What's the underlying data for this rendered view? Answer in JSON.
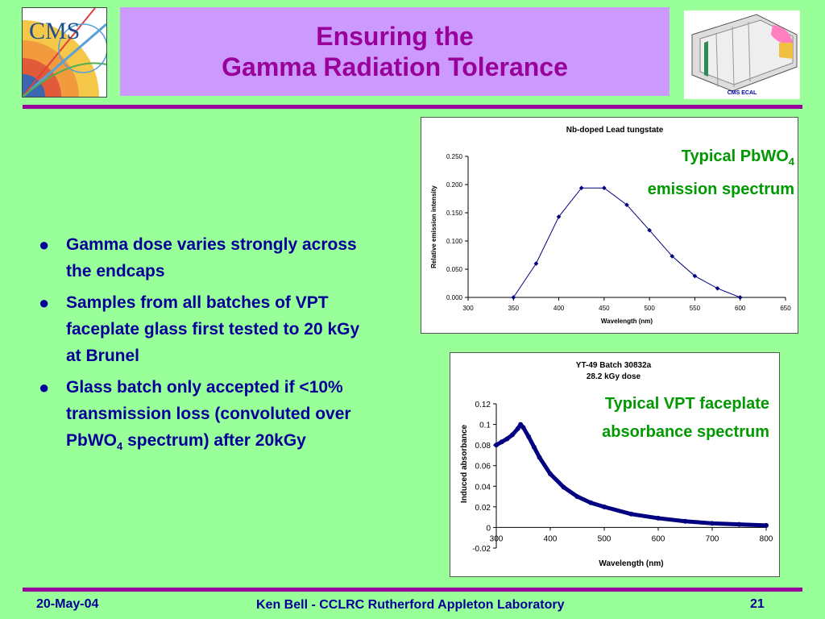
{
  "header": {
    "title_line1": "Ensuring the",
    "title_line2": "Gamma Radiation Tolerance",
    "cms_logo_text": "CMS",
    "ecal_label": "CMS ECAL"
  },
  "bullets": [
    {
      "text": "Gamma dose varies strongly across the endcaps"
    },
    {
      "text": "Samples from all batches of VPT faceplate glass first tested to 20 kGy at Brunel"
    },
    {
      "text_before": "Glass batch only accepted if <10% transmission loss (convoluted over PbWO",
      "subscript": "4",
      "text_after": " spectrum) after 20kGy"
    }
  ],
  "callouts": {
    "emission_line1_main": "Typical PbWO",
    "emission_line1_sub": "4",
    "emission_line2": "emission spectrum",
    "absorbance_line1": "Typical VPT faceplate",
    "absorbance_line2": "absorbance spectrum"
  },
  "footer": {
    "date": "20-May-04",
    "author": "Ken Bell - CCLRC Rutherford Appleton Laboratory",
    "page": "21"
  },
  "colors": {
    "background": "#99ff99",
    "title_box": "#cc99ff",
    "title_text": "#990099",
    "rule": "#990099",
    "bullet_text": "#000099",
    "callout_text": "#009900",
    "series": "#000080"
  },
  "chart_data": [
    {
      "type": "line",
      "title": "Nb-doped Lead tungstate",
      "xlabel": "Wavelength (nm)",
      "ylabel": "Relative emission intensity",
      "xlim": [
        300,
        650
      ],
      "ylim": [
        0.0,
        0.25
      ],
      "x_ticks": [
        "300",
        "350",
        "400",
        "450",
        "500",
        "550",
        "600",
        "650"
      ],
      "y_ticks": [
        "0.000",
        "0.050",
        "0.100",
        "0.150",
        "0.200",
        "0.250"
      ],
      "markers": true,
      "grid": false,
      "x": [
        350,
        375,
        400,
        425,
        450,
        475,
        500,
        525,
        550,
        575,
        600
      ],
      "y": [
        0.0,
        0.06,
        0.143,
        0.194,
        0.194,
        0.164,
        0.119,
        0.073,
        0.038,
        0.016,
        0.0
      ]
    },
    {
      "type": "scatter",
      "title_line1": "YT-49 Batch 30832a",
      "title_line2": "28.2 kGy dose",
      "xlabel": "Wavelength (nm)",
      "ylabel": "Induced absorbance",
      "xlim": [
        300,
        800
      ],
      "ylim": [
        -0.02,
        0.12
      ],
      "x_ticks": [
        "300",
        "400",
        "500",
        "600",
        "700",
        "800"
      ],
      "y_ticks": [
        "-0.02",
        "0",
        "0.02",
        "0.04",
        "0.06",
        "0.08",
        "0.1",
        "0.12"
      ],
      "grid": false,
      "x": [
        300,
        310,
        320,
        330,
        340,
        345,
        350,
        360,
        370,
        380,
        400,
        425,
        450,
        475,
        500,
        550,
        600,
        650,
        700,
        750,
        800
      ],
      "y": [
        0.08,
        0.083,
        0.086,
        0.09,
        0.096,
        0.1,
        0.097,
        0.088,
        0.078,
        0.068,
        0.052,
        0.039,
        0.03,
        0.024,
        0.02,
        0.013,
        0.009,
        0.006,
        0.004,
        0.003,
        0.002
      ]
    }
  ]
}
